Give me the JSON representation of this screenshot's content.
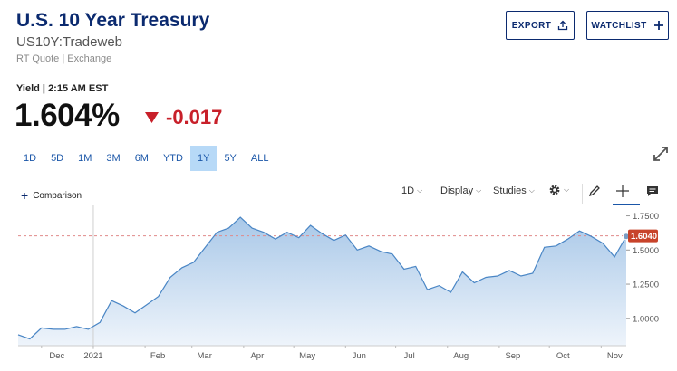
{
  "header": {
    "title": "U.S. 10 Year Treasury",
    "symbol": "US10Y:Tradeweb",
    "quote_source": "RT Quote | Exchange",
    "export_label": "EXPORT",
    "watchlist_label": "WATCHLIST"
  },
  "quote": {
    "yield_label": "Yield | 2:15 AM EST",
    "price": "1.604%",
    "change": "-0.017",
    "change_color": "#c8202a"
  },
  "range_tabs": [
    {
      "label": "1D"
    },
    {
      "label": "5D"
    },
    {
      "label": "1M"
    },
    {
      "label": "3M"
    },
    {
      "label": "6M"
    },
    {
      "label": "YTD"
    },
    {
      "label": "1Y",
      "active": true
    },
    {
      "label": "5Y"
    },
    {
      "label": "ALL"
    }
  ],
  "toolbar": {
    "comparison_label": "Comparison",
    "interval_label": "1D",
    "display_label": "Display",
    "studies_label": "Studies"
  },
  "icons": [
    "upload-icon",
    "plus-icon",
    "triangle-down-icon",
    "expand-icon",
    "gear-icon",
    "pencil-icon",
    "crosshair-icon",
    "comment-icon"
  ],
  "chart_data": {
    "type": "area",
    "x": [
      "2020-11-17",
      "2020-11-24",
      "2020-12-01",
      "2020-12-08",
      "2020-12-15",
      "2020-12-22",
      "2020-12-29",
      "2021-01-05",
      "2021-01-12",
      "2021-01-19",
      "2021-01-26",
      "2021-02-02",
      "2021-02-09",
      "2021-02-16",
      "2021-02-23",
      "2021-03-02",
      "2021-03-09",
      "2021-03-16",
      "2021-03-23",
      "2021-03-30",
      "2021-04-06",
      "2021-04-13",
      "2021-04-20",
      "2021-04-27",
      "2021-05-04",
      "2021-05-11",
      "2021-05-18",
      "2021-05-25",
      "2021-06-01",
      "2021-06-08",
      "2021-06-15",
      "2021-06-22",
      "2021-06-29",
      "2021-07-06",
      "2021-07-13",
      "2021-07-20",
      "2021-07-27",
      "2021-08-03",
      "2021-08-10",
      "2021-08-17",
      "2021-08-24",
      "2021-08-31",
      "2021-09-07",
      "2021-09-14",
      "2021-09-21",
      "2021-09-28",
      "2021-10-05",
      "2021-10-12",
      "2021-10-19",
      "2021-10-26",
      "2021-11-02",
      "2021-11-09",
      "2021-11-16"
    ],
    "values": [
      0.88,
      0.85,
      0.93,
      0.92,
      0.92,
      0.94,
      0.92,
      0.97,
      1.13,
      1.09,
      1.04,
      1.1,
      1.16,
      1.3,
      1.37,
      1.41,
      1.52,
      1.63,
      1.66,
      1.74,
      1.66,
      1.63,
      1.58,
      1.63,
      1.59,
      1.68,
      1.62,
      1.57,
      1.61,
      1.5,
      1.53,
      1.49,
      1.47,
      1.36,
      1.38,
      1.21,
      1.24,
      1.19,
      1.34,
      1.26,
      1.3,
      1.31,
      1.35,
      1.31,
      1.33,
      1.52,
      1.53,
      1.58,
      1.64,
      1.6,
      1.55,
      1.45,
      1.6
    ],
    "x_tick_labels": [
      "Dec",
      "2021",
      "Feb",
      "Mar",
      "Apr",
      "May",
      "Jun",
      "Jul",
      "Aug",
      "Sep",
      "Oct",
      "Nov"
    ],
    "y_tick_labels": [
      "1.7500",
      "1.5000",
      "1.2500",
      "1.0000"
    ],
    "y_ticks": [
      1.75,
      1.5,
      1.25,
      1.0
    ],
    "ylim": [
      0.8,
      1.8
    ],
    "last_value": 1.604,
    "last_value_label": "1.6040",
    "reference_line": 1.604,
    "line_color": "#4a86c5",
    "last_value_color": "#c8432a",
    "grid": false
  }
}
